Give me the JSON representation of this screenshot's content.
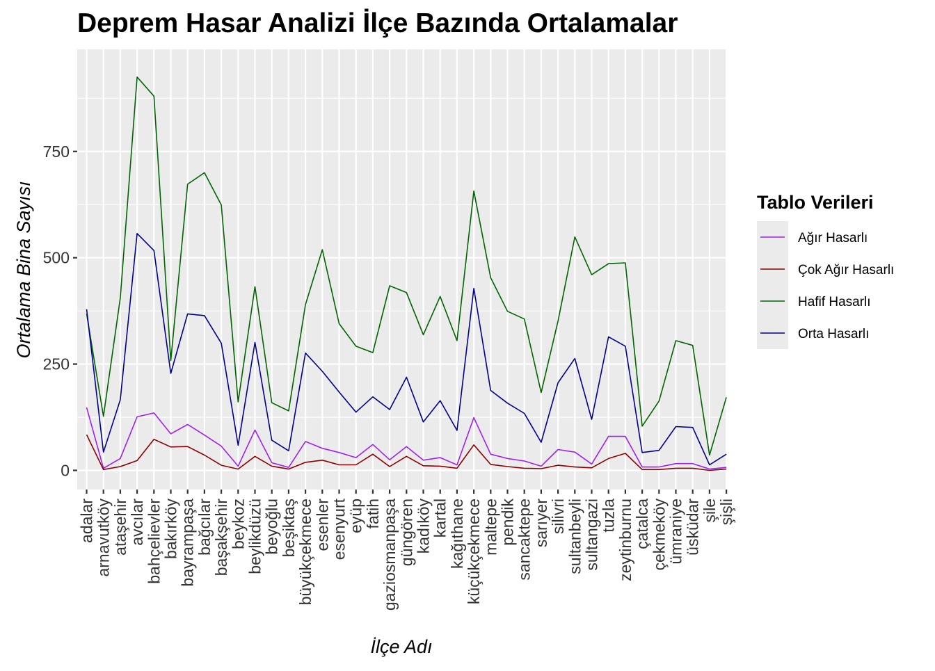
{
  "chart_data": {
    "type": "line",
    "title": "Deprem Hasar Analizi İlçe Bazında Ortalamalar",
    "xlabel": "İlçe Adı",
    "ylabel": "Ortalama Bina Sayısı",
    "ylim": [
      -45,
      990
    ],
    "yticks": [
      0,
      250,
      500,
      750
    ],
    "grid": true,
    "legend": {
      "title": "Tablo Verileri",
      "position": "right"
    },
    "categories": [
      "adalar",
      "arnavutköy",
      "ataşehir",
      "avcılar",
      "bahçelievler",
      "bakırköy",
      "bayrampaşa",
      "bağcılar",
      "başakşehir",
      "beykoz",
      "beylikdüzü",
      "beyoğlu",
      "beşiktaş",
      "büyükçekmece",
      "esenler",
      "esenyurt",
      "eyüp",
      "fatih",
      "gaziosmanpaşa",
      "güngören",
      "kadıköy",
      "kartal",
      "kağıthane",
      "küçükçekmece",
      "maltepe",
      "pendik",
      "sancaktepe",
      "sarıyer",
      "silivri",
      "sultanbeyli",
      "sultangazi",
      "tuzla",
      "zeytinburnu",
      "çatalca",
      "çekmeköy",
      "ümraniye",
      "üsküdar",
      "şile",
      "şişli"
    ],
    "series": [
      {
        "name": "Ağır Hasarlı",
        "color": "#a020f0",
        "values": [
          148,
          5,
          28,
          126,
          135,
          86,
          108,
          83,
          57,
          10,
          95,
          18,
          7,
          68,
          52,
          42,
          30,
          61,
          25,
          56,
          24,
          30,
          13,
          124,
          38,
          28,
          22,
          10,
          49,
          43,
          15,
          80,
          80,
          8,
          8,
          16,
          16,
          3,
          7
        ]
      },
      {
        "name": "Çok Ağır Hasarlı",
        "color": "#8b0000",
        "values": [
          84,
          2,
          9,
          23,
          73,
          55,
          56,
          36,
          12,
          3,
          33,
          10,
          3,
          19,
          24,
          13,
          13,
          38,
          9,
          33,
          11,
          10,
          5,
          60,
          14,
          9,
          5,
          4,
          12,
          8,
          6,
          28,
          40,
          2,
          2,
          5,
          5,
          0,
          3
        ]
      },
      {
        "name": "Hafif Hasarlı",
        "color": "#006400",
        "values": [
          368,
          127,
          405,
          925,
          880,
          258,
          673,
          700,
          624,
          161,
          432,
          159,
          140,
          390,
          519,
          345,
          292,
          277,
          434,
          418,
          319,
          409,
          305,
          657,
          453,
          374,
          356,
          183,
          351,
          549,
          460,
          486,
          488,
          104,
          163,
          305,
          294,
          36,
          172
        ]
      },
      {
        "name": "Orta Hasarlı",
        "color": "#00008b",
        "values": [
          379,
          43,
          166,
          557,
          517,
          228,
          368,
          364,
          299,
          59,
          301,
          71,
          46,
          276,
          233,
          184,
          137,
          173,
          143,
          219,
          114,
          164,
          94,
          428,
          188,
          158,
          134,
          66,
          206,
          263,
          120,
          314,
          292,
          42,
          47,
          103,
          101,
          13,
          38
        ]
      }
    ]
  }
}
